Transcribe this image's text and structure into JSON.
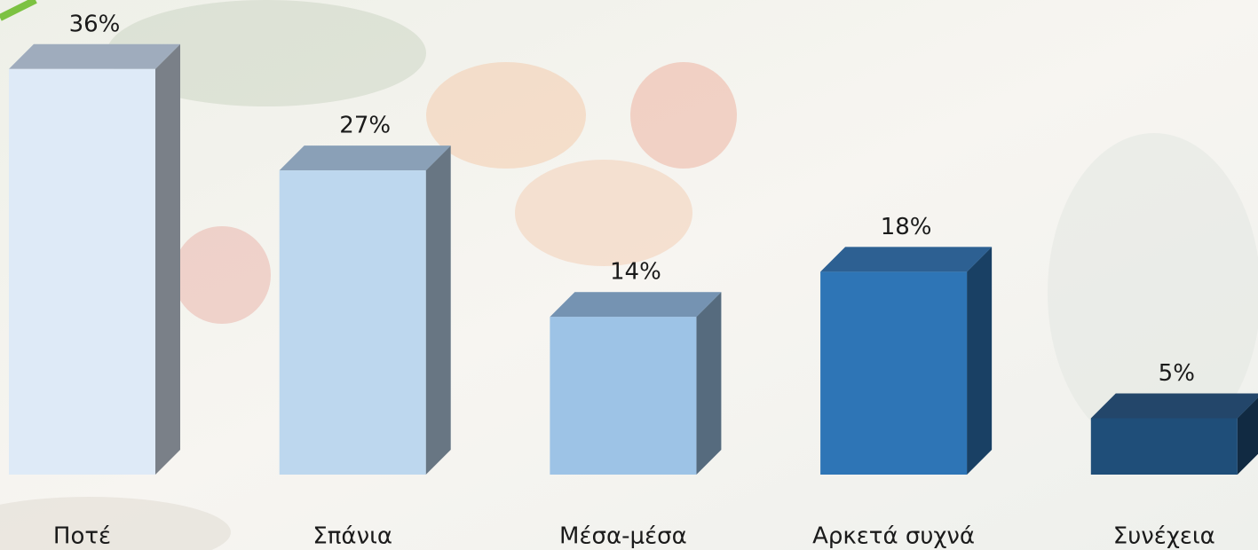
{
  "chart_data": {
    "type": "bar3d",
    "categories": [
      "Ποτέ",
      "Σπάνια",
      "Μέσα-μέσα",
      "Αρκετά συχνά",
      "Συνέχεια"
    ],
    "values": [
      36,
      27,
      14,
      18,
      5
    ],
    "value_labels": [
      "36%",
      "27%",
      "14%",
      "18%",
      "5%"
    ],
    "colors": [
      "#deeaf7",
      "#bdd7ee",
      "#9dc3e6",
      "#2e75b6",
      "#1f4e79"
    ]
  }
}
